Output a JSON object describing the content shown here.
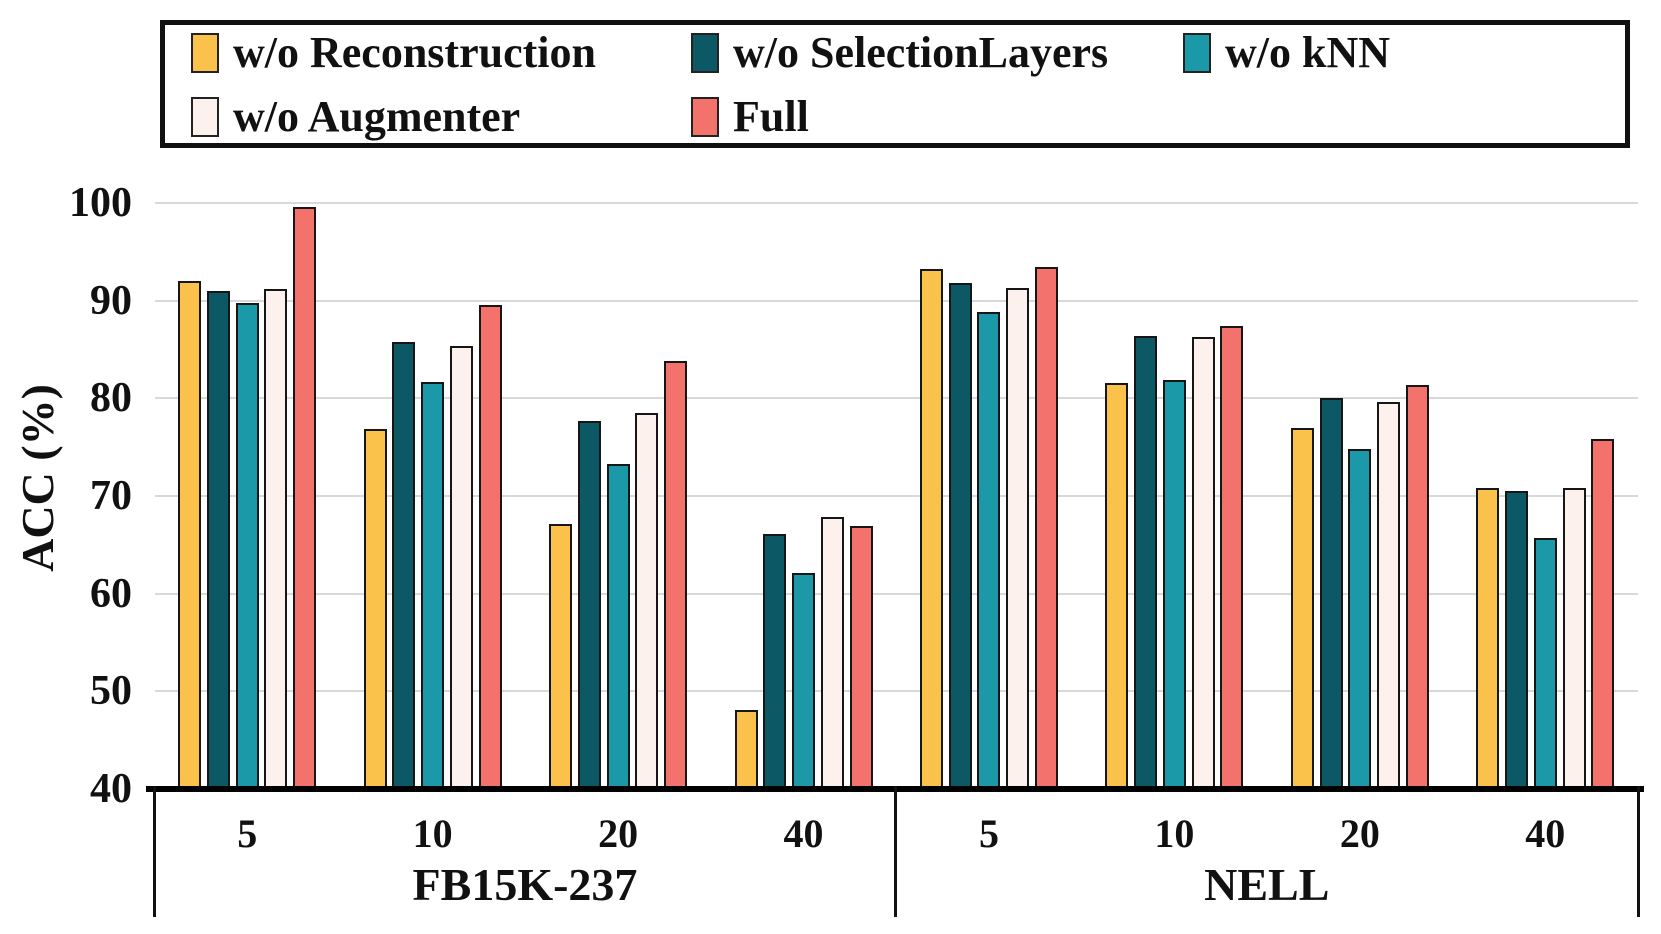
{
  "figure": {
    "kind": "grouped bar chart"
  },
  "legend": {
    "items": [
      {
        "label": "w/o Reconstruction",
        "color": "#FBC24B"
      },
      {
        "label": "w/o SelectionLayers",
        "color": "#0D5865"
      },
      {
        "label": "w/o kNN",
        "color": "#1B99A8"
      },
      {
        "label": "w/o Augmenter",
        "color": "#FCF1EC"
      },
      {
        "label": "Full",
        "color": "#F4726C"
      }
    ]
  },
  "y_axis": {
    "label": "ACC (%)",
    "ticks": [
      100,
      90,
      80,
      70,
      60,
      50,
      40
    ]
  },
  "x_axis": {
    "datasets": [
      {
        "name": "FB15K-237",
        "shots": [
          "5",
          "10",
          "20",
          "40"
        ]
      },
      {
        "name": "NELL",
        "shots": [
          "5",
          "10",
          "20",
          "40"
        ]
      }
    ]
  },
  "chart_data": {
    "type": "bar",
    "title": "",
    "xlabel": "",
    "ylabel": "ACC (%)",
    "ylim": [
      40,
      100
    ],
    "yticks": [
      40,
      50,
      60,
      70,
      80,
      90,
      100
    ],
    "grid": "horizontal",
    "legend_position": "top",
    "categories": [
      "FB15K-237 / 5",
      "FB15K-237 / 10",
      "FB15K-237 / 20",
      "FB15K-237 / 40",
      "NELL / 5",
      "NELL / 10",
      "NELL / 20",
      "NELL / 40"
    ],
    "series": [
      {
        "name": "w/o Reconstruction",
        "color": "#FBC24B",
        "values": [
          92.0,
          76.8,
          67.1,
          48.1,
          93.2,
          81.6,
          77.0,
          70.8
        ]
      },
      {
        "name": "w/o SelectionLayers",
        "color": "#0D5865",
        "values": [
          91.0,
          85.8,
          77.7,
          66.1,
          91.8,
          86.4,
          80.0,
          70.5
        ]
      },
      {
        "name": "w/o kNN",
        "color": "#1B99A8",
        "values": [
          89.7,
          81.7,
          73.3,
          62.1,
          88.8,
          81.9,
          74.8,
          65.7
        ]
      },
      {
        "name": "w/o Augmenter",
        "color": "#FCF1EC",
        "values": [
          91.2,
          85.3,
          78.5,
          67.8,
          91.3,
          86.3,
          79.6,
          70.8
        ]
      },
      {
        "name": "Full",
        "color": "#F4726C",
        "values": [
          99.6,
          89.5,
          83.8,
          66.9,
          93.4,
          87.4,
          81.4,
          75.8
        ]
      }
    ]
  }
}
